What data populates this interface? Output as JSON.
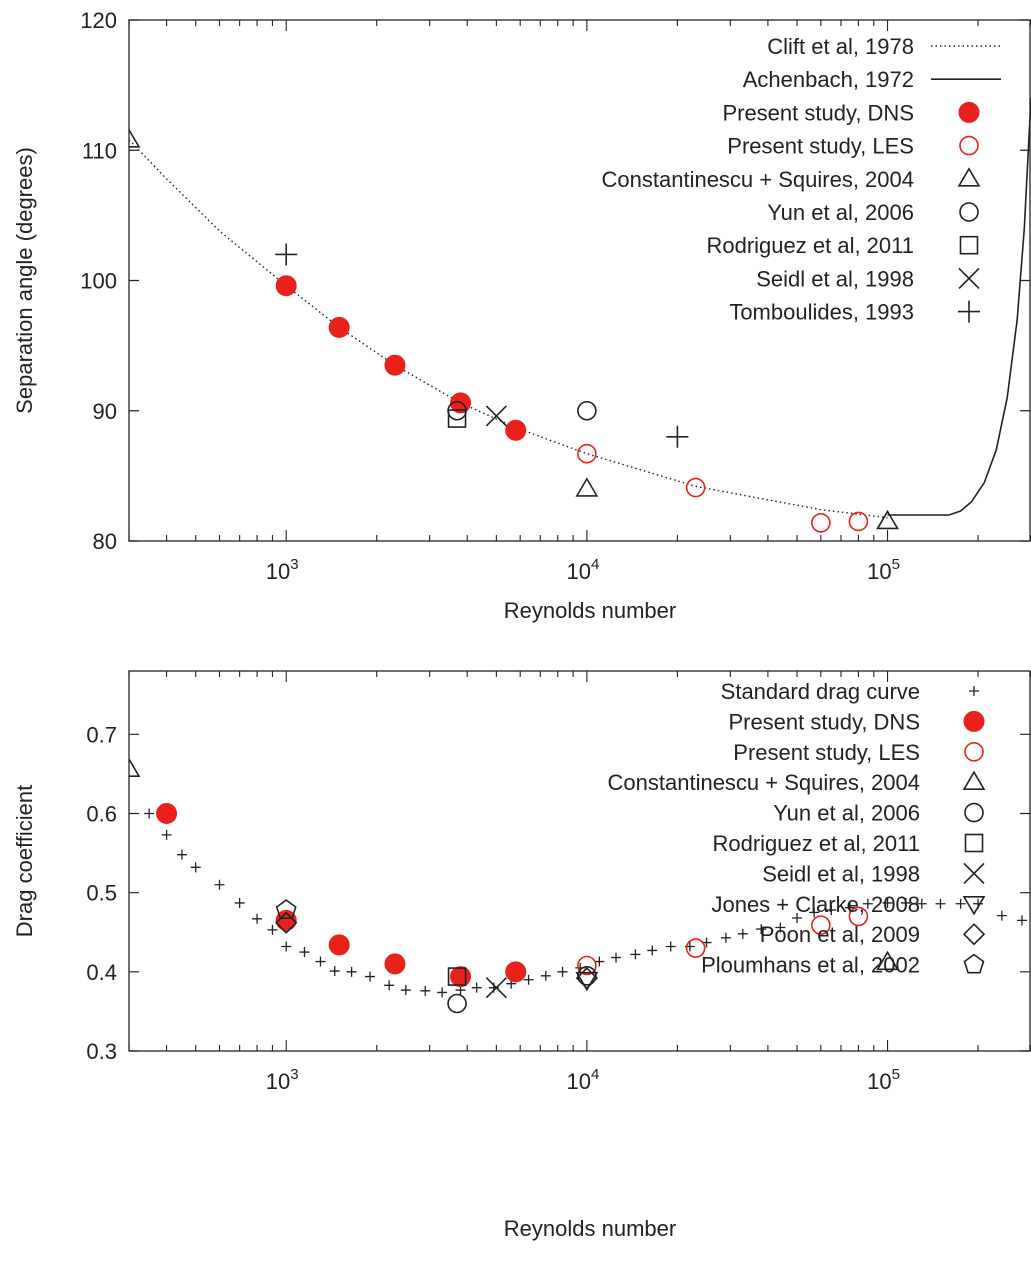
{
  "colors": {
    "dns": "#e8221b",
    "les": "#e8221b",
    "ref": "#222222"
  },
  "chart_data": [
    {
      "type": "scatter",
      "name": "separation-angle",
      "xscale": "log",
      "xlim": [
        300,
        300000
      ],
      "ylim": [
        80,
        120
      ],
      "xlabel": "Reynolds number",
      "ylabel": "Separation angle (degrees)",
      "xticks": [
        {
          "value": 1000,
          "base": "10",
          "exp": "3"
        },
        {
          "value": 10000,
          "base": "10",
          "exp": "4"
        },
        {
          "value": 100000,
          "base": "10",
          "exp": "5"
        }
      ],
      "yticks": [
        "80",
        "90",
        "100",
        "110",
        "120"
      ],
      "legend_position": "top-right",
      "series": [
        {
          "name": "Clift et al, 1978",
          "marker": "dotted-line",
          "x": [
            300,
            400,
            600,
            1000,
            1500,
            2300,
            3800,
            5800,
            10000,
            23000,
            60000,
            100000
          ],
          "y": [
            110.8,
            107.8,
            103.8,
            99.6,
            96.4,
            93.5,
            90.6,
            88.7,
            86.7,
            84.2,
            82.4,
            81.8
          ]
        },
        {
          "name": "Achenbach, 1972",
          "marker": "solid-line",
          "x": [
            100000,
            160000,
            175000,
            190000,
            210000,
            230000,
            250000,
            270000,
            285000,
            300000
          ],
          "y": [
            82,
            82,
            82.3,
            83,
            84.5,
            87,
            91,
            97,
            104,
            114
          ]
        },
        {
          "name": "Present study, DNS",
          "marker": "filled-circle",
          "x": [
            1000,
            1500,
            2300,
            3800,
            5800
          ],
          "y": [
            99.6,
            96.4,
            93.5,
            90.6,
            88.5
          ]
        },
        {
          "name": "Present study, LES",
          "marker": "open-circle-red",
          "x": [
            10000,
            23000,
            60000,
            80000
          ],
          "y": [
            86.7,
            84.1,
            81.4,
            81.5
          ]
        },
        {
          "name": "Constantinescu + Squires, 2004",
          "marker": "triangle-up",
          "x": [
            300,
            10000,
            100000
          ],
          "y": [
            110.8,
            84.0,
            81.5
          ]
        },
        {
          "name": "Yun et al, 2006",
          "marker": "open-circle",
          "x": [
            3700,
            10000
          ],
          "y": [
            90.0,
            90.0
          ]
        },
        {
          "name": "Rodriguez et al, 2011",
          "marker": "square",
          "x": [
            3700
          ],
          "y": [
            89.4
          ]
        },
        {
          "name": "Seidl et al, 1998",
          "marker": "cross",
          "x": [
            5000
          ],
          "y": [
            89.6
          ]
        },
        {
          "name": "Tomboulides, 1993",
          "marker": "plus",
          "x": [
            1000,
            20000
          ],
          "y": [
            102.0,
            88.0
          ]
        }
      ]
    },
    {
      "type": "scatter",
      "name": "drag-coefficient",
      "xscale": "log",
      "xlim": [
        300,
        300000
      ],
      "ylim": [
        0.3,
        0.78
      ],
      "xlabel": "Reynolds number",
      "ylabel": "Drag coefficient",
      "xticks": [
        {
          "value": 1000,
          "base": "10",
          "exp": "3"
        },
        {
          "value": 10000,
          "base": "10",
          "exp": "4"
        },
        {
          "value": 100000,
          "base": "10",
          "exp": "5"
        }
      ],
      "yticks": [
        "0.3",
        "0.4",
        "0.5",
        "0.6",
        "0.7"
      ],
      "legend_position": "top-right",
      "series": [
        {
          "name": "Standard drag curve",
          "marker": "small-plus",
          "x": [
            350,
            400,
            450,
            500,
            600,
            700,
            800,
            900,
            1000,
            1150,
            1300,
            1450,
            1650,
            1900,
            2200,
            2500,
            2900,
            3300,
            3800,
            4300,
            4900,
            5600,
            6400,
            7300,
            8300,
            9500,
            11000,
            12500,
            14500,
            16500,
            19000,
            22000,
            25000,
            29000,
            33000,
            38000,
            44000,
            50000,
            57000,
            65000,
            75000,
            86000,
            100000,
            115000,
            130000,
            150000,
            175000,
            200000,
            240000,
            280000
          ],
          "y": [
            0.6,
            0.573,
            0.548,
            0.532,
            0.51,
            0.487,
            0.467,
            0.453,
            0.432,
            0.425,
            0.413,
            0.401,
            0.4,
            0.394,
            0.383,
            0.377,
            0.376,
            0.374,
            0.377,
            0.38,
            0.38,
            0.385,
            0.39,
            0.395,
            0.4,
            0.405,
            0.413,
            0.418,
            0.422,
            0.427,
            0.432,
            0.432,
            0.437,
            0.443,
            0.448,
            0.454,
            0.456,
            0.468,
            0.475,
            0.478,
            0.481,
            0.486,
            0.487,
            0.487,
            0.486,
            0.486,
            0.486,
            0.486,
            0.471,
            0.465
          ]
        },
        {
          "name": "Present study, DNS",
          "marker": "filled-circle",
          "x": [
            400,
            1000,
            1500,
            2300,
            3800,
            5800
          ],
          "y": [
            0.6,
            0.465,
            0.434,
            0.41,
            0.394,
            0.4
          ]
        },
        {
          "name": "Present study, LES",
          "marker": "open-circle-red",
          "x": [
            10000,
            23000,
            60000,
            80000
          ],
          "y": [
            0.408,
            0.43,
            0.459,
            0.47
          ]
        },
        {
          "name": "Constantinescu + Squires, 2004",
          "marker": "triangle-up",
          "x": [
            300,
            100000
          ],
          "y": [
            0.656,
            0.412
          ]
        },
        {
          "name": "Yun et al, 2006",
          "marker": "open-circle",
          "x": [
            3700,
            10000
          ],
          "y": [
            0.36,
            0.395
          ]
        },
        {
          "name": "Rodriguez et al, 2011",
          "marker": "square",
          "x": [
            3700
          ],
          "y": [
            0.394
          ]
        },
        {
          "name": "Seidl et al, 1998",
          "marker": "cross",
          "x": [
            5000
          ],
          "y": [
            0.38
          ]
        },
        {
          "name": "Jones + Clarke, 2008",
          "marker": "triangle-down",
          "x": [
            10000
          ],
          "y": [
            0.39
          ]
        },
        {
          "name": "Poon et al, 2009",
          "marker": "diamond",
          "x": [
            1000,
            10000
          ],
          "y": [
            0.462,
            0.392
          ]
        },
        {
          "name": "Ploumhans et al, 2002",
          "marker": "pentagon",
          "x": [
            1000
          ],
          "y": [
            0.478
          ]
        }
      ]
    }
  ]
}
